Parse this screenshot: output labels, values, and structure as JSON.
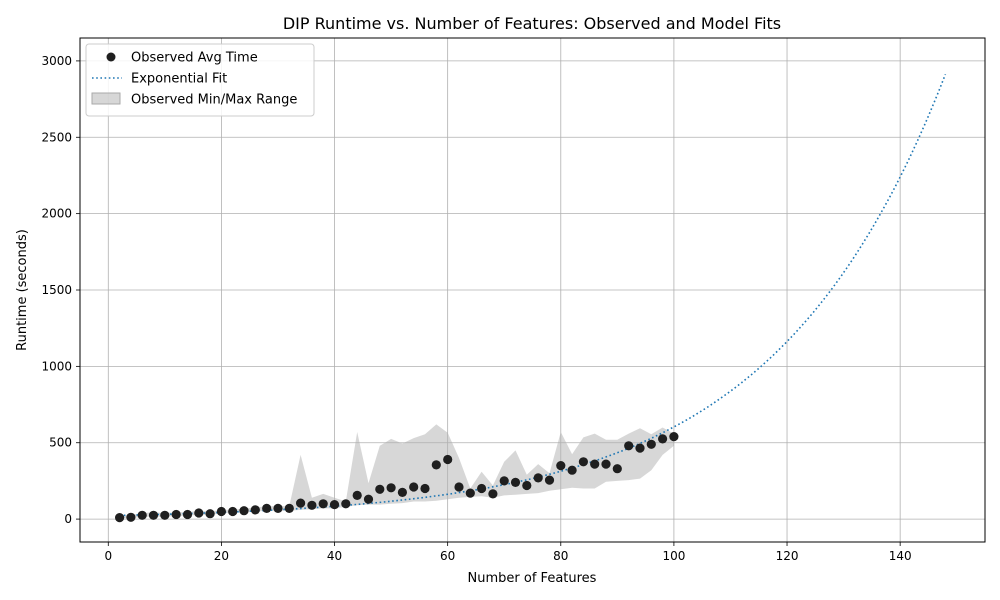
{
  "chart_data": {
    "type": "scatter",
    "title": "DIP Runtime vs. Number of Features: Observed and Model Fits",
    "xlabel": "Number of Features",
    "ylabel": "Runtime (seconds)",
    "xlim": [
      -5,
      155
    ],
    "ylim": [
      -150,
      3150
    ],
    "x_ticks": [
      0,
      20,
      40,
      60,
      80,
      100,
      120,
      140
    ],
    "y_ticks": [
      0,
      500,
      1000,
      1500,
      2000,
      2500,
      3000
    ],
    "grid": true,
    "legend_position": "top-left",
    "colors": {
      "observed": "#1f1f1f",
      "fit": "#1f77b4",
      "range": "#b0b0b0"
    },
    "legend": [
      "Observed Avg Time",
      "Exponential Fit",
      "Observed Min/Max Range"
    ],
    "series": [
      {
        "name": "Observed Avg Time",
        "kind": "scatter",
        "x": [
          2,
          4,
          6,
          8,
          10,
          12,
          14,
          16,
          18,
          20,
          22,
          24,
          26,
          28,
          30,
          32,
          34,
          36,
          38,
          40,
          42,
          44,
          46,
          48,
          50,
          52,
          54,
          56,
          58,
          60,
          62,
          64,
          66,
          68,
          70,
          72,
          74,
          76,
          78,
          80,
          82,
          84,
          86,
          88,
          90,
          92,
          94,
          96,
          98,
          100
        ],
        "y": [
          10,
          12,
          25,
          25,
          25,
          30,
          30,
          40,
          35,
          50,
          50,
          55,
          60,
          70,
          70,
          70,
          105,
          90,
          100,
          95,
          100,
          155,
          130,
          195,
          205,
          175,
          210,
          200,
          355,
          390,
          210,
          170,
          200,
          165,
          250,
          240,
          220,
          270,
          255,
          350,
          320,
          375,
          360,
          360,
          330,
          480,
          465,
          490,
          525,
          540
        ]
      },
      {
        "name": "Exponential Fit",
        "kind": "line",
        "style": "dotted",
        "a": 22.7,
        "b": 0.0328,
        "x_range": [
          2,
          148
        ]
      },
      {
        "name": "Observed Min/Max Range",
        "kind": "band",
        "x": [
          2,
          4,
          6,
          8,
          10,
          12,
          14,
          16,
          18,
          20,
          22,
          24,
          26,
          28,
          30,
          32,
          34,
          36,
          38,
          40,
          42,
          44,
          46,
          48,
          50,
          52,
          54,
          56,
          58,
          60,
          62,
          64,
          66,
          68,
          70,
          72,
          74,
          76,
          78,
          80,
          82,
          84,
          86,
          88,
          90,
          92,
          94,
          96,
          98,
          100
        ],
        "min": [
          5,
          5,
          15,
          15,
          15,
          20,
          20,
          30,
          25,
          40,
          40,
          45,
          50,
          55,
          55,
          55,
          60,
          65,
          70,
          70,
          80,
          90,
          95,
          95,
          100,
          105,
          115,
          115,
          120,
          130,
          140,
          145,
          150,
          140,
          155,
          160,
          165,
          170,
          185,
          195,
          205,
          200,
          200,
          245,
          250,
          255,
          265,
          320,
          420,
          480
        ],
        "max": [
          20,
          25,
          40,
          45,
          40,
          45,
          45,
          55,
          50,
          60,
          60,
          70,
          75,
          85,
          85,
          85,
          420,
          140,
          165,
          140,
          115,
          570,
          235,
          480,
          525,
          495,
          530,
          555,
          620,
          565,
          400,
          200,
          310,
          220,
          375,
          450,
          290,
          360,
          300,
          570,
          425,
          535,
          560,
          520,
          520,
          560,
          595,
          555,
          600,
          560
        ]
      }
    ]
  }
}
